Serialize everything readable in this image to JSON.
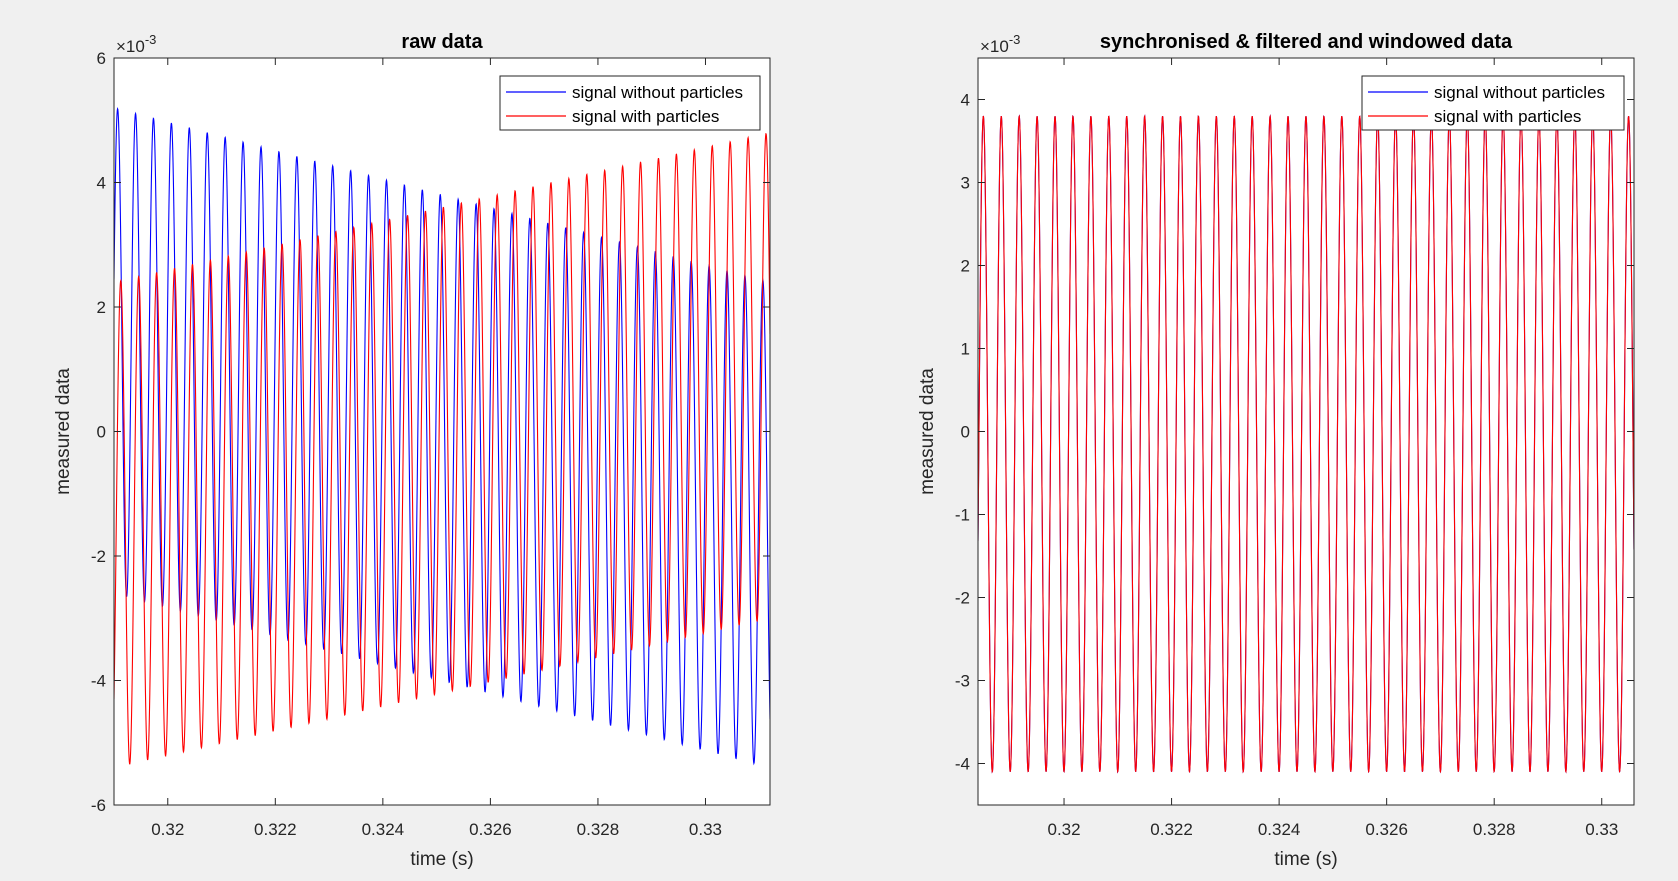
{
  "chart_data": [
    {
      "type": "line",
      "title": "raw data",
      "xlabel": "time (s)",
      "ylabel": "measured data",
      "exponent_label": "×10",
      "exponent_power": "-3",
      "xlim": [
        0.319,
        0.3312
      ],
      "ylim": [
        -6,
        6
      ],
      "xticks": [
        0.32,
        0.322,
        0.324,
        0.326,
        0.328,
        0.33
      ],
      "xtick_labels": [
        "0.32",
        "0.322",
        "0.324",
        "0.326",
        "0.328",
        "0.33"
      ],
      "yticks": [
        -6,
        -4,
        -2,
        0,
        2,
        4,
        6
      ],
      "ytick_labels": [
        "-6",
        "-4",
        "-2",
        "0",
        "2",
        "4",
        "6"
      ],
      "grid": false,
      "legend_position": "top-right",
      "series": [
        {
          "name": "signal without particles",
          "color": "#0000ff",
          "frequency_hz": 3000,
          "offset_start": 1.3,
          "offset_end": -1.5,
          "amplitude_start": 3.9,
          "amplitude_end": 3.9,
          "phase_rad": 0.3
        },
        {
          "name": "signal with particles",
          "color": "#ff0000",
          "frequency_hz": 3000,
          "offset_start": -1.5,
          "offset_end": 0.9,
          "amplitude_start": 3.9,
          "amplitude_end": 3.9,
          "phase_rad": -0.8
        }
      ]
    },
    {
      "type": "line",
      "title": "synchronised & filtered and windowed data",
      "xlabel": "time (s)",
      "ylabel": "measured data",
      "exponent_label": "×10",
      "exponent_power": "-3",
      "xlim": [
        0.3184,
        0.3306
      ],
      "ylim": [
        -4.5,
        4.5
      ],
      "xticks": [
        0.32,
        0.322,
        0.324,
        0.326,
        0.328,
        0.33
      ],
      "xtick_labels": [
        "0.32",
        "0.322",
        "0.324",
        "0.326",
        "0.328",
        "0.33"
      ],
      "yticks": [
        -4,
        -3,
        -2,
        -1,
        0,
        1,
        2,
        3,
        4
      ],
      "ytick_labels": [
        "-4",
        "-3",
        "-2",
        "-1",
        "0",
        "1",
        "2",
        "3",
        "4"
      ],
      "grid": false,
      "legend_position": "top-right",
      "series": [
        {
          "name": "signal without particles",
          "color": "#0000ff",
          "frequency_hz": 3000,
          "offset_start": -0.15,
          "offset_end": -0.15,
          "amplitude_start": 3.95,
          "amplitude_end": 3.95,
          "phase_rad": -0.3
        },
        {
          "name": "signal with particles",
          "color": "#ff0000",
          "frequency_hz": 3000,
          "offset_start": -0.15,
          "offset_end": -0.15,
          "amplitude_start": 3.95,
          "amplitude_end": 3.95,
          "phase_rad": -0.3
        }
      ]
    }
  ]
}
